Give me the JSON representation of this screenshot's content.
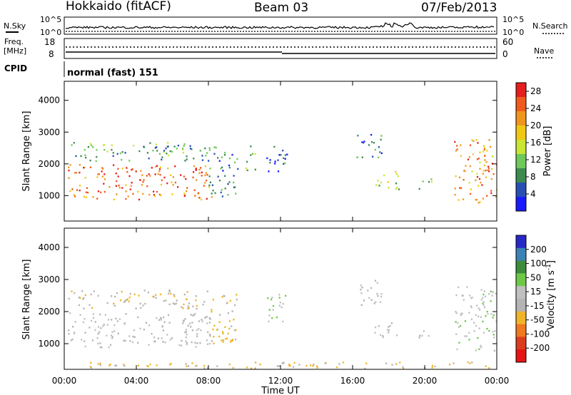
{
  "header": {
    "station": "Hokkaido (fitACF)",
    "beam": "Beam 03",
    "date": "07/Feb/2013"
  },
  "top_strip": {
    "left_label": "N.Sky",
    "right_label": "N.Search",
    "left_ticks": [
      "10^5",
      "10^0"
    ],
    "right_ticks": [
      "10^5",
      "10^0"
    ]
  },
  "freq_strip": {
    "left_label_1": "Freq.",
    "left_label_2": "[MHz]",
    "right_label": "Nave",
    "left_ticks": [
      "18",
      "8"
    ],
    "right_ticks": [
      "60",
      "0"
    ]
  },
  "cpid": {
    "label": "CPID",
    "mode_text": "normal (fast) 151"
  },
  "colors": {
    "power_scale": [
      "#1a1aff",
      "#2850b4",
      "#3c8c50",
      "#6ec85a",
      "#c8e632",
      "#f0c814",
      "#f0961e",
      "#f05a1e",
      "#e61e1e"
    ],
    "velocity_scale": [
      "#2828c8",
      "#3c82b4",
      "#3c8c3c",
      "#6ec846",
      "#c0c0c0",
      "#b4b4b4",
      "#f0b428",
      "#f0781e",
      "#dc3c1e",
      "#e61414"
    ]
  },
  "chart_data": [
    {
      "type": "heatmap",
      "panel": "power",
      "ylabel": "Slant Range [km]",
      "ylim": [
        200,
        4600
      ],
      "yticks": [
        "1000",
        "2000",
        "3000",
        "4000"
      ],
      "xticks": [
        "00:00",
        "04:00",
        "08:00",
        "12:00",
        "16:00",
        "20:00",
        "00:00"
      ],
      "xlim_hours": [
        0,
        24
      ],
      "colorbar": {
        "label": "Power [dB]",
        "ticks": [
          "4",
          "8",
          "12",
          "16",
          "20",
          "24",
          "28"
        ],
        "range": [
          0,
          30
        ]
      },
      "regions": [
        {
          "t0": 0.2,
          "t1": 8.2,
          "r0": 900,
          "r1": 2000,
          "value": 24
        },
        {
          "t0": 0.2,
          "t1": 8.0,
          "r0": 2100,
          "r1": 2700,
          "value": 10
        },
        {
          "t0": 8.0,
          "t1": 9.6,
          "r0": 1000,
          "r1": 2600,
          "value": 8
        },
        {
          "t0": 10.0,
          "t1": 10.6,
          "r0": 1800,
          "r1": 2600,
          "value": 12
        },
        {
          "t0": 11.2,
          "t1": 12.4,
          "r0": 1700,
          "r1": 2600,
          "value": 6
        },
        {
          "t0": 16.2,
          "t1": 17.6,
          "r0": 2200,
          "r1": 3000,
          "value": 8
        },
        {
          "t0": 17.2,
          "t1": 18.6,
          "r0": 1200,
          "r1": 1800,
          "value": 14
        },
        {
          "t0": 19.6,
          "t1": 20.4,
          "r0": 1200,
          "r1": 1600,
          "value": 10
        },
        {
          "t0": 21.6,
          "t1": 24.0,
          "r0": 800,
          "r1": 2800,
          "value": 22
        }
      ]
    },
    {
      "type": "heatmap",
      "panel": "velocity",
      "ylabel": "Slant Range [km]",
      "ylim": [
        200,
        4600
      ],
      "yticks": [
        "1000",
        "2000",
        "3000",
        "4000"
      ],
      "xticks": [
        "00:00",
        "04:00",
        "08:00",
        "12:00",
        "16:00",
        "20:00",
        "00:00"
      ],
      "xlabel": "Time UT",
      "xlim_hours": [
        0,
        24
      ],
      "colorbar": {
        "label": "Velocity [m s^-1]",
        "ticks": [
          "200",
          "100",
          "50",
          "15",
          "-15",
          "-50",
          "-100",
          "-200"
        ],
        "range": [
          -250,
          250
        ]
      },
      "regions": [
        {
          "t0": 0.2,
          "t1": 8.2,
          "r0": 900,
          "r1": 2000,
          "value": 0
        },
        {
          "t0": 0.2,
          "t1": 8.0,
          "r0": 2100,
          "r1": 2700,
          "value": -40
        },
        {
          "t0": 8.0,
          "t1": 9.6,
          "r0": 1000,
          "r1": 2600,
          "value": -60
        },
        {
          "t0": 11.2,
          "t1": 12.4,
          "r0": 1700,
          "r1": 2600,
          "value": 40
        },
        {
          "t0": 16.2,
          "t1": 17.6,
          "r0": 2200,
          "r1": 3000,
          "value": -10
        },
        {
          "t0": 17.2,
          "t1": 18.6,
          "r0": 1200,
          "r1": 1800,
          "value": 0
        },
        {
          "t0": 19.6,
          "t1": 20.4,
          "r0": 1200,
          "r1": 1600,
          "value": 0
        },
        {
          "t0": 21.6,
          "t1": 24.0,
          "r0": 800,
          "r1": 2800,
          "value": 30
        },
        {
          "t0": 0.5,
          "t1": 24.0,
          "r0": 250,
          "r1": 450,
          "value": -60
        }
      ]
    }
  ]
}
